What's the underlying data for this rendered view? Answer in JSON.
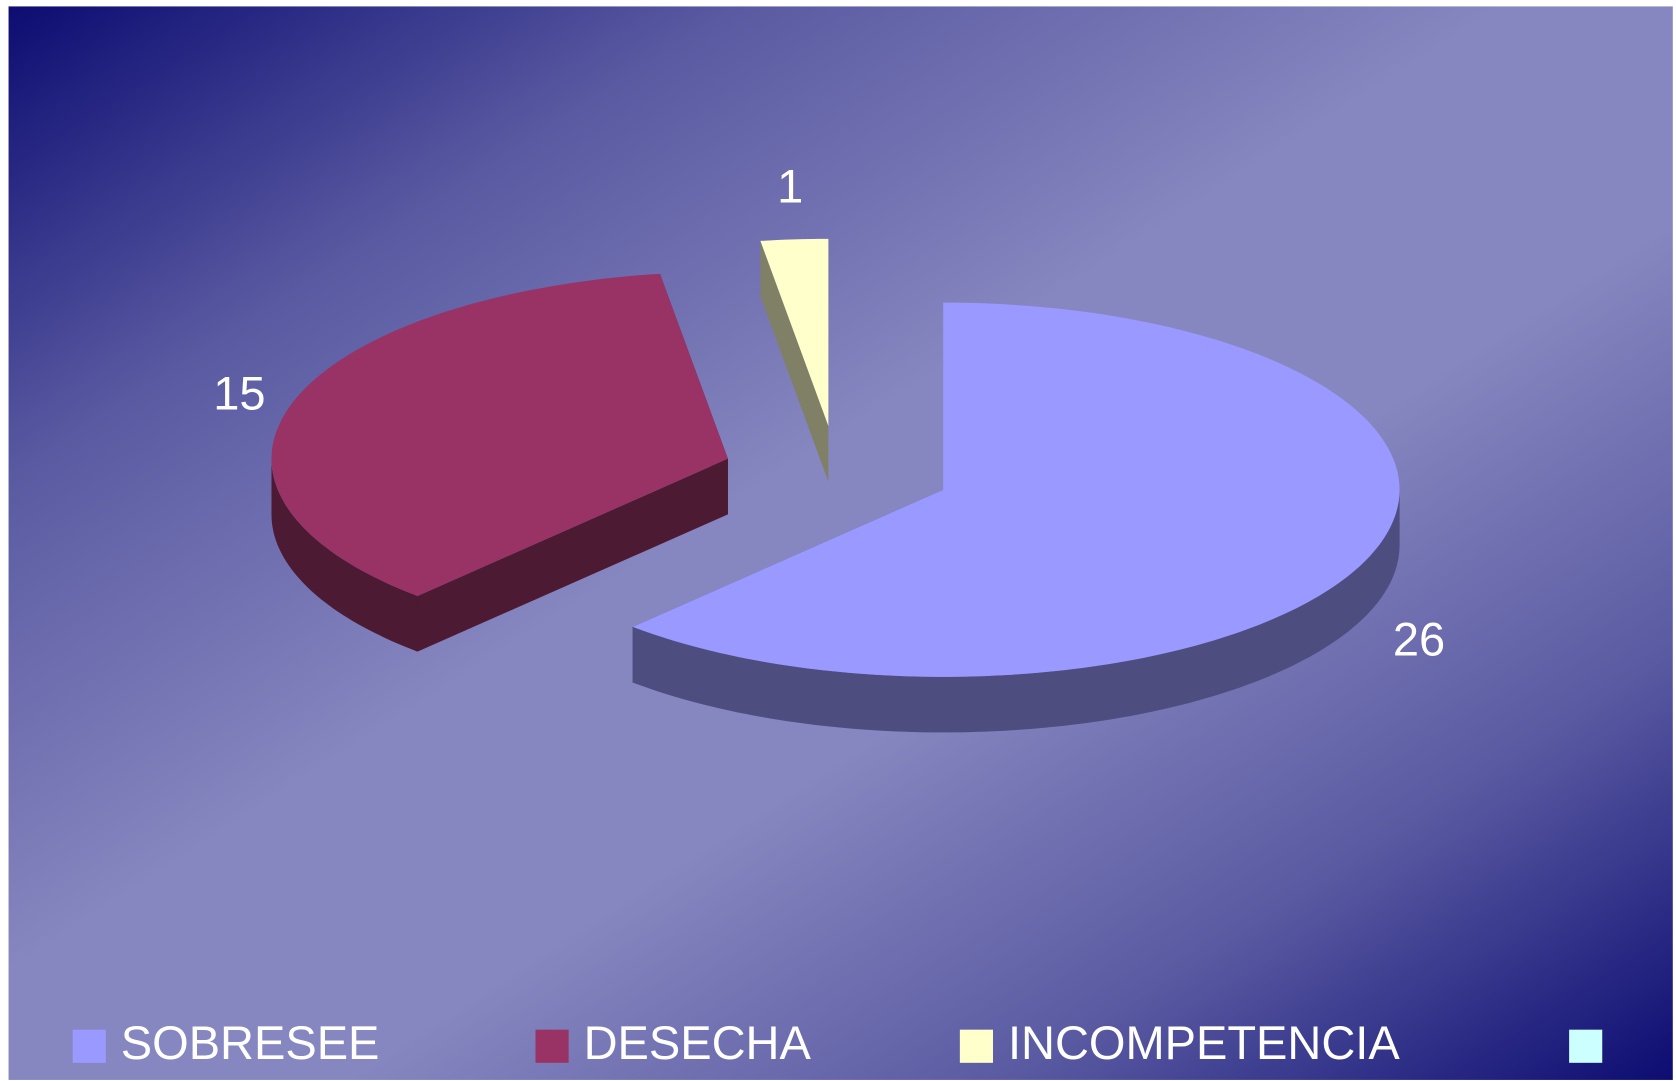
{
  "chart_data": {
    "type": "pie",
    "categories": [
      "SOBRESEE",
      "DESECHA",
      "INCOMPETENCIA",
      null
    ],
    "values": [
      26,
      15,
      1,
      0
    ],
    "colors": [
      "#9999ff",
      "#993366",
      "#ffffcc",
      "#ccffff"
    ],
    "three_d": true,
    "exploded": true,
    "legend": "bottom"
  }
}
